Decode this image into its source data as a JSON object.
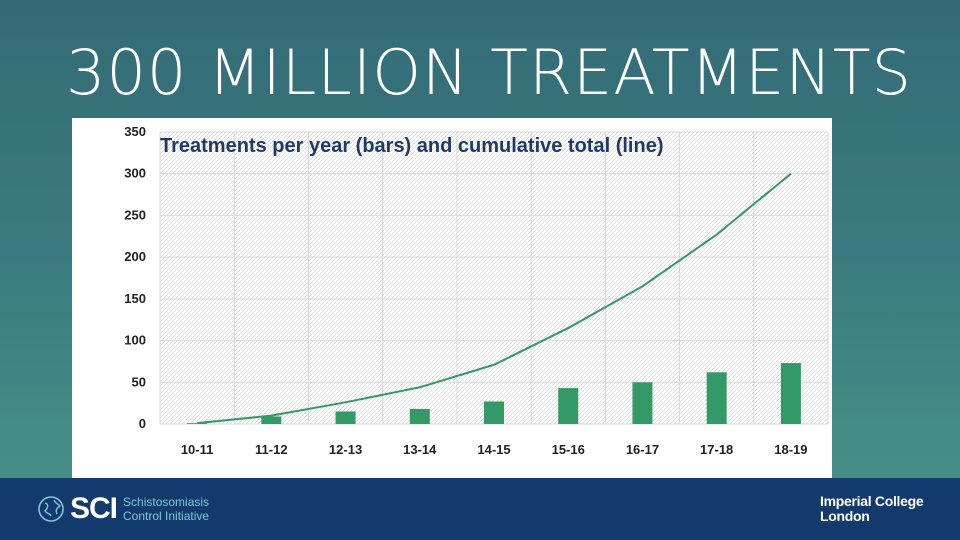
{
  "slide": {
    "title": "300 MILLION TREATMENTS"
  },
  "chart_data": {
    "type": "bar",
    "title": "Treatments per year (bars) and cumulative total (line)",
    "categories": [
      "10-11",
      "11-12",
      "12-13",
      "13-14",
      "14-15",
      "15-16",
      "16-17",
      "17-18",
      "18-19"
    ],
    "series": [
      {
        "type": "bar",
        "values": [
          1,
          9,
          15,
          18,
          27,
          43,
          50,
          62,
          73
        ],
        "color": "#339966"
      },
      {
        "type": "line",
        "values": [
          1,
          10,
          26,
          44,
          71,
          115,
          165,
          227,
          300
        ],
        "color": "#339966"
      }
    ],
    "ylim": [
      0,
      350
    ],
    "yticks": [
      0,
      50,
      100,
      150,
      200,
      250,
      300,
      350
    ],
    "grid": true
  },
  "footer": {
    "logo_text": "SCI",
    "org_line1": "Schistosomiasis",
    "org_line2": "Control Initiative",
    "partner_line1": "Imperial College",
    "partner_line2": "London",
    "icons": [
      "globe-icon"
    ]
  }
}
